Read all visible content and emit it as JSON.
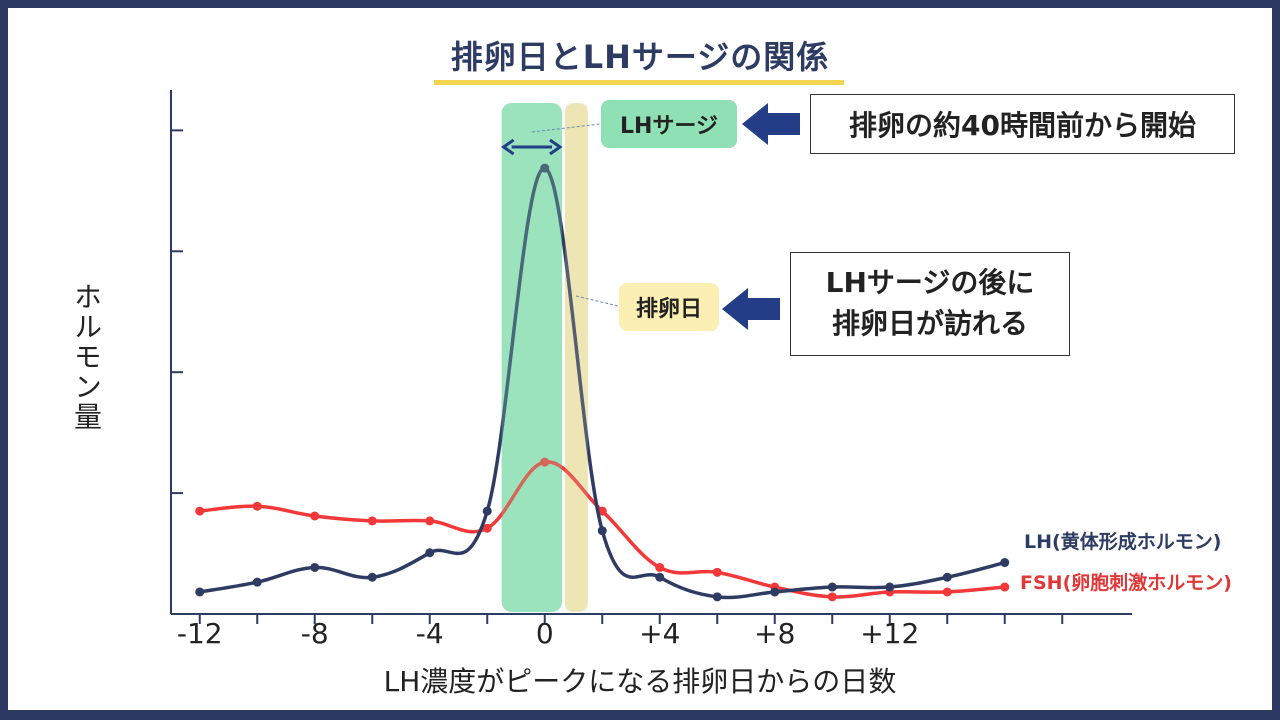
{
  "title": "排卵日とLHサージの関係",
  "annotations": {
    "lh_surge_tag": "LHサージ",
    "ovulation_tag": "排卵日",
    "note_surge": "排卵の約40時間前から開始",
    "note_ovulation_line1": "LHサージの後に",
    "note_ovulation_line2": "排卵日が訪れる"
  },
  "colors": {
    "lh": "#2e3b63",
    "fsh": "#f23838",
    "surge_band": "#8fe0b5",
    "ovulation_band": "#fbefb4",
    "arrow": "#233e86",
    "title_underline": "#f2d54e"
  },
  "chart_data": {
    "type": "line",
    "title": "排卵日とLHサージの関係",
    "xlabel": "LH濃度がピークになる排卵日からの日数",
    "ylabel": "ホルモン量",
    "x_tick_labels": [
      "-12",
      "-8",
      "-4",
      "0",
      "+4",
      "+8",
      "+12"
    ],
    "x_ticks": [
      -12,
      -8,
      -4,
      0,
      4,
      8,
      12
    ],
    "xlim": [
      -13,
      18
    ],
    "ylim": [
      0,
      100
    ],
    "y_ticks": [
      25,
      50,
      75,
      100
    ],
    "series": [
      {
        "name": "LH(黄体形成ホルモン)",
        "x": [
          -12,
          -10,
          -8,
          -6,
          -4,
          -2,
          0,
          2,
          4,
          6,
          8,
          10,
          12,
          14,
          16
        ],
        "values": [
          4.5,
          6.5,
          9.5,
          7.5,
          12.5,
          21,
          91,
          17,
          7.5,
          3.5,
          4.5,
          5.5,
          5.5,
          7.5,
          10.5
        ]
      },
      {
        "name": "FSH(卵胞刺激ホルモン)",
        "x": [
          -12,
          -10,
          -8,
          -6,
          -4,
          -2,
          0,
          2,
          4,
          6,
          8,
          10,
          12,
          14,
          16
        ],
        "values": [
          21,
          22,
          20,
          19,
          19,
          17.5,
          31,
          21,
          9.5,
          8.5,
          5.5,
          3.5,
          4.5,
          4.5,
          5.5
        ]
      }
    ],
    "bands": [
      {
        "label": "LHサージ",
        "from": -1.5,
        "to": 0.6
      },
      {
        "label": "排卵日",
        "from": 0.7,
        "to": 1.5
      }
    ],
    "grid": false,
    "legend": "right"
  }
}
